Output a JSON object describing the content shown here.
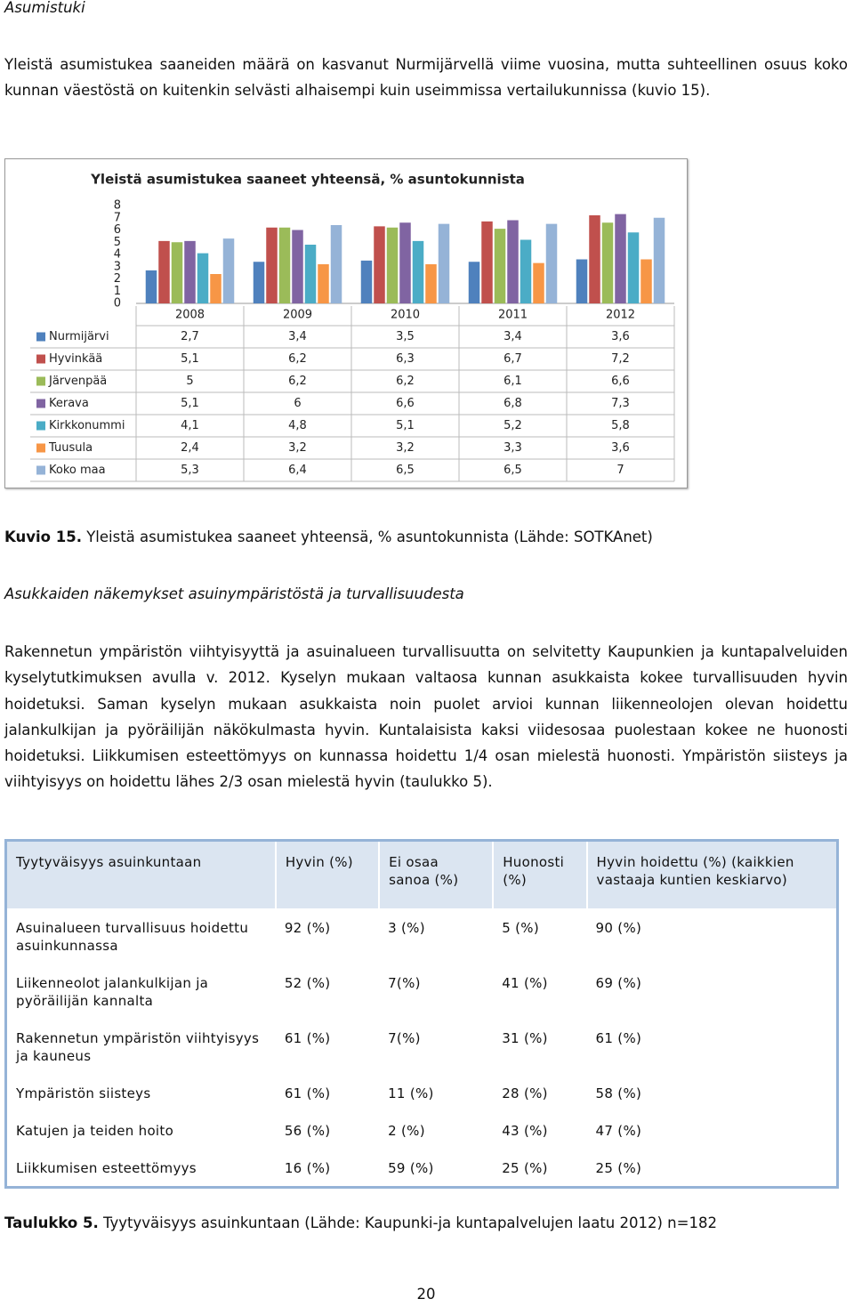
{
  "heading": "Asumistuki",
  "paragraph1": "Yleistä asumistukea saaneiden määrä on kasvanut Nurmijärvellä viime vuosina, mutta suhteellinen osuus koko kunnan väestöstä on kuitenkin selvästi alhaisempi kuin useimmissa vertailukunnissa (kuvio 15).",
  "chart_data": {
    "type": "bar",
    "title": "Yleistä asumistukea saaneet yhteensä, % asuntokunnista",
    "categories": [
      "2008",
      "2009",
      "2010",
      "2011",
      "2012"
    ],
    "ylim": [
      0,
      8
    ],
    "yticks": [
      0,
      1,
      2,
      3,
      4,
      5,
      6,
      7,
      8
    ],
    "data_table": true,
    "series": [
      {
        "name": "Nurmijärvi",
        "color": "#4f81bd",
        "values": [
          2.7,
          3.4,
          3.5,
          3.4,
          3.6
        ],
        "value_labels": [
          "2,7",
          "3,4",
          "3,5",
          "3,4",
          "3,6"
        ]
      },
      {
        "name": "Hyvinkää",
        "color": "#c0504d",
        "values": [
          5.1,
          6.2,
          6.3,
          6.7,
          7.2
        ],
        "value_labels": [
          "5,1",
          "6,2",
          "6,3",
          "6,7",
          "7,2"
        ]
      },
      {
        "name": "Järvenpää",
        "color": "#9bbb59",
        "values": [
          5,
          6.2,
          6.2,
          6.1,
          6.6
        ],
        "value_labels": [
          "5",
          "6,2",
          "6,2",
          "6,1",
          "6,6"
        ]
      },
      {
        "name": "Kerava",
        "color": "#8064a2",
        "values": [
          5.1,
          6,
          6.6,
          6.8,
          7.3
        ],
        "value_labels": [
          "5,1",
          "6",
          "6,6",
          "6,8",
          "7,3"
        ]
      },
      {
        "name": "Kirkkonummi",
        "color": "#4bacc6",
        "values": [
          4.1,
          4.8,
          5.1,
          5.2,
          5.8
        ],
        "value_labels": [
          "4,1",
          "4,8",
          "5,1",
          "5,2",
          "5,8"
        ]
      },
      {
        "name": "Tuusula",
        "color": "#f79646",
        "values": [
          2.4,
          3.2,
          3.2,
          3.3,
          3.6
        ],
        "value_labels": [
          "2,4",
          "3,2",
          "3,2",
          "3,3",
          "3,6"
        ]
      },
      {
        "name": "Koko maa",
        "color": "#95b3d7",
        "values": [
          5.3,
          6.4,
          6.5,
          6.5,
          7
        ],
        "value_labels": [
          "5,3",
          "6,4",
          "6,5",
          "6,5",
          "7"
        ]
      }
    ]
  },
  "figure_caption": {
    "label": "Kuvio 15.",
    "text": "Yleistä asumistukea saaneet yhteensä, % asuntokunnista (Lähde: SOTKAnet)"
  },
  "heading2": "Asukkaiden näkemykset asuinympäristöstä ja turvallisuudesta",
  "paragraph2": "Rakennetun ympäristön viihtyisyyttä ja asuinalueen turvallisuutta on selvitetty Kaupunkien ja kuntapalveluiden kyselytutkimuksen avulla v. 2012. Kyselyn mukaan valtaosa kunnan asukkaista kokee turvallisuuden hyvin hoidetuksi. Saman kyselyn mukaan asukkaista noin puolet arvioi kunnan liikenneolojen olevan hoidettu jalankulkijan ja pyöräilijän näkökulmasta hyvin. Kuntalaisista kaksi viidesosaa puolestaan kokee ne huonosti hoidetuksi. Liikkumisen esteettömyys on kunnassa hoidettu 1/4 osan mielestä huonosti. Ympäristön siisteys ja viihtyisyys on hoidettu lähes 2/3 osan mielestä hyvin (taulukko 5).",
  "table": {
    "header": [
      "Tyytyväisyys asuinkuntaan",
      "Hyvin (%)",
      "Ei osaa sanoa (%)",
      "Huonosti (%)",
      "Hyvin hoidettu (%) (kaikkien vastaaja kuntien keskiarvo)"
    ],
    "rows": [
      [
        "Asuinalueen turvallisuus hoidettu asuinkunnassa",
        "92 (%)",
        "3 (%)",
        "5 (%)",
        "90 (%)"
      ],
      [
        "Liikenneolot jalankulkijan ja pyöräilijän kannalta",
        "52 (%)",
        "7(%)",
        "41 (%)",
        "69 (%)"
      ],
      [
        "Rakennetun ympäristön viihtyisyys ja kauneus",
        "61 (%)",
        "7(%)",
        "31 (%)",
        "61 (%)"
      ],
      [
        "Ympäristön siisteys",
        "61 (%)",
        "11 (%)",
        "28 (%)",
        "58 (%)"
      ],
      [
        "Katujen ja teiden hoito",
        "56 (%)",
        "2 (%)",
        "43 (%)",
        "47 (%)"
      ],
      [
        "Liikkumisen esteettömyys",
        "16 (%)",
        "59 (%)",
        "25 (%)",
        "25 (%)"
      ]
    ]
  },
  "table_caption": {
    "label": "Taulukko 5.",
    "text": "Tyytyväisyys asuinkuntaan (Lähde: Kaupunki-ja kuntapalvelujen laatu 2012) n=182"
  },
  "page_number": "20"
}
